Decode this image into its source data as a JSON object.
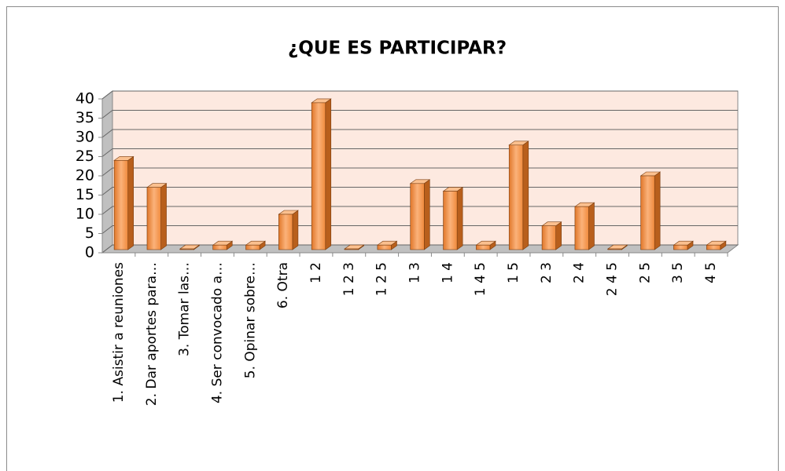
{
  "chart_data": {
    "type": "bar",
    "title": "¿QUE ES PARTICIPAR?",
    "categories": [
      "1. Asistir a reuniones",
      "2. Dar aportes para…",
      "3. Tomar las…",
      "4. Ser convocado a…",
      "5. Opinar sobre…",
      "6. Otra",
      "1 2",
      "1 2 3",
      "1 2 5",
      "1 3",
      "1 4",
      "1 4 5",
      "1 5",
      "2 3",
      "2 4",
      "2 4 5",
      "2 5",
      "3 5",
      "4 5"
    ],
    "values": [
      24,
      17,
      1,
      2,
      2,
      10,
      39,
      1,
      2,
      18,
      16,
      2,
      28,
      7,
      12,
      1,
      20,
      2,
      2
    ],
    "color": "#f79646",
    "ylim": [
      0,
      40
    ],
    "yticks": [
      0,
      5,
      10,
      15,
      20,
      25,
      30,
      35,
      40
    ],
    "grid": true
  }
}
